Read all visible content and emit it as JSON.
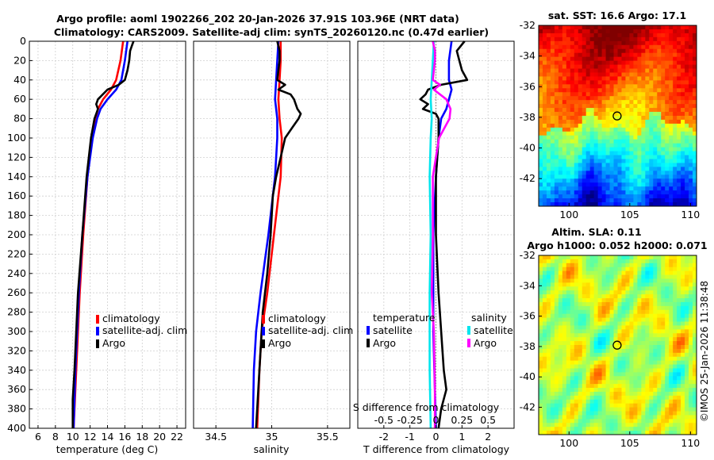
{
  "title": {
    "line1": "Argo profile: aoml 1902266_202 20-Jan-2026 37.91S 103.96E (NRT data)",
    "line2": "Climatology: CARS2009. Satellite-adj clim: synTS_20260120.nc (0.47d earlier)"
  },
  "depth_ticks": [
    0,
    20,
    40,
    60,
    80,
    100,
    120,
    140,
    160,
    180,
    200,
    220,
    240,
    260,
    280,
    300,
    320,
    340,
    360,
    380,
    400
  ],
  "copyright": "©IMOS 25-Jan-2026 11:38:48",
  "chart_data": [
    {
      "id": "temperature",
      "type": "line",
      "xlabel": "temperature (deg C)",
      "ylabel": "",
      "xlim": [
        5,
        23
      ],
      "ylim": [
        400,
        0
      ],
      "xticks": [
        6,
        8,
        10,
        12,
        14,
        16,
        18,
        20,
        22
      ],
      "xtick_labels": [
        "6",
        "8",
        "10",
        "12",
        "14",
        "16",
        "18",
        "20",
        "22"
      ],
      "legend": [
        "climatology",
        "satellite-adj. clim",
        "Argo"
      ],
      "legend_position": "lower-right",
      "series": [
        {
          "name": "climatology",
          "color": "#ff0000",
          "depth": [
            0,
            20,
            40,
            50,
            60,
            70,
            80,
            100,
            140,
            200,
            260,
            300,
            340,
            400
          ],
          "values": [
            15.8,
            15.5,
            15.0,
            14.4,
            13.5,
            12.9,
            12.6,
            12.2,
            11.7,
            11.2,
            10.8,
            10.6,
            10.4,
            10.1
          ]
        },
        {
          "name": "satellite-adj. clim",
          "color": "#0000ff",
          "depth": [
            0,
            20,
            40,
            50,
            60,
            70,
            80,
            100,
            140,
            200,
            260,
            300,
            340,
            400
          ],
          "values": [
            16.3,
            16.0,
            15.6,
            15.0,
            14.0,
            13.2,
            12.8,
            12.3,
            11.7,
            11.1,
            10.7,
            10.5,
            10.3,
            10.1
          ]
        },
        {
          "name": "Argo",
          "color": "#000000",
          "depth": [
            0,
            5,
            10,
            20,
            30,
            40,
            45,
            50,
            60,
            65,
            70,
            80,
            100,
            140,
            200,
            260,
            300,
            340,
            370,
            400
          ],
          "values": [
            17.0,
            16.8,
            16.6,
            16.5,
            16.3,
            16.0,
            15.3,
            14.0,
            12.9,
            12.7,
            12.9,
            12.5,
            12.1,
            11.6,
            11.1,
            10.6,
            10.4,
            10.2,
            10.0,
            10.0
          ]
        }
      ]
    },
    {
      "id": "salinity",
      "type": "line",
      "xlabel": "salinity",
      "ylabel": "",
      "xlim": [
        34.3,
        35.7
      ],
      "ylim": [
        400,
        0
      ],
      "xticks": [
        34.5,
        35,
        35.5
      ],
      "xtick_labels": [
        "34.5",
        "35",
        "35.5"
      ],
      "legend": [
        "climatology",
        "satellite-adj. clim",
        "Argo"
      ],
      "legend_position": "lower-right",
      "series": [
        {
          "name": "climatology",
          "color": "#ff0000",
          "depth": [
            0,
            20,
            40,
            60,
            80,
            100,
            140,
            200,
            260,
            300,
            340,
            400
          ],
          "values": [
            35.08,
            35.08,
            35.07,
            35.06,
            35.07,
            35.09,
            35.08,
            35.02,
            34.96,
            34.91,
            34.89,
            34.87
          ]
        },
        {
          "name": "satellite-adj. clim",
          "color": "#0000ff",
          "depth": [
            0,
            20,
            40,
            60,
            80,
            100,
            140,
            200,
            260,
            300,
            340,
            400
          ],
          "values": [
            35.06,
            35.05,
            35.04,
            35.03,
            35.05,
            35.05,
            35.03,
            34.97,
            34.9,
            34.86,
            34.84,
            34.83
          ]
        },
        {
          "name": "Argo",
          "color": "#000000",
          "depth": [
            0,
            10,
            20,
            40,
            45,
            50,
            55,
            60,
            70,
            75,
            80,
            90,
            100,
            120,
            140,
            160,
            200,
            240,
            280,
            320,
            360,
            400
          ],
          "values": [
            35.05,
            35.07,
            35.07,
            35.05,
            35.12,
            35.06,
            35.17,
            35.2,
            35.23,
            35.26,
            35.24,
            35.18,
            35.12,
            35.08,
            35.04,
            35.01,
            34.99,
            34.96,
            34.92,
            34.9,
            34.88,
            34.86
          ]
        }
      ]
    },
    {
      "id": "difference",
      "type": "line",
      "xlabel": "T difference from climatology",
      "top_label": "S difference from climatology",
      "ylabel": "",
      "xlim": [
        -3,
        3
      ],
      "ylim": [
        400,
        0
      ],
      "xticks": [
        -2,
        -1,
        0,
        1,
        2
      ],
      "xtick_labels": [
        "-2",
        "-1",
        "0",
        "1",
        "2"
      ],
      "sticks": [
        -0.5,
        -0.25,
        0,
        0.25,
        0.5
      ],
      "stick_labels": [
        "-0.5",
        "-0.25",
        "0",
        "0.25",
        "0.5"
      ],
      "slim": [
        -0.75,
        0.75
      ],
      "legend_groups": [
        {
          "heading": "temperature",
          "entries": [
            "satellite",
            "Argo"
          ]
        },
        {
          "heading": "salinity",
          "entries": [
            "satellite",
            "Argo"
          ]
        }
      ],
      "legend_position": "lower-center",
      "series": [
        {
          "name": "temperature satellite",
          "color": "#0000ff",
          "units": "T",
          "depth": [
            0,
            20,
            40,
            50,
            60,
            70,
            80,
            100,
            140,
            200,
            260,
            300,
            400
          ],
          "values": [
            0.6,
            0.5,
            0.5,
            0.6,
            0.5,
            0.4,
            0.2,
            0.1,
            0.0,
            -0.1,
            -0.1,
            -0.1,
            0.0
          ]
        },
        {
          "name": "temperature Argo",
          "color": "#000000",
          "units": "T",
          "depth": [
            0,
            10,
            20,
            30,
            40,
            45,
            50,
            55,
            60,
            65,
            70,
            75,
            80,
            100,
            140,
            200,
            260,
            300,
            340,
            360,
            380,
            400
          ],
          "values": [
            1.1,
            0.8,
            0.9,
            1.0,
            1.2,
            0.2,
            -0.3,
            -0.4,
            -0.6,
            -0.3,
            -0.5,
            0.0,
            0.1,
            0.1,
            0.0,
            0.0,
            0.1,
            0.2,
            0.3,
            0.4,
            0.2,
            0.1
          ]
        },
        {
          "name": "salinity satellite",
          "color": "#00e5ee",
          "units": "S",
          "depth": [
            0,
            20,
            40,
            60,
            80,
            100,
            140,
            200,
            260,
            300,
            340,
            400
          ],
          "values": [
            -0.02,
            -0.03,
            -0.04,
            -0.05,
            -0.04,
            -0.05,
            -0.06,
            -0.05,
            -0.06,
            -0.06,
            -0.06,
            -0.05
          ]
        },
        {
          "name": "salinity Argo",
          "color": "#ff00ff",
          "units": "S",
          "depth": [
            0,
            10,
            20,
            40,
            45,
            50,
            60,
            70,
            80,
            90,
            100,
            140,
            200,
            260,
            300,
            360,
            400
          ],
          "values": [
            -0.03,
            -0.01,
            -0.01,
            -0.03,
            0.04,
            -0.02,
            0.1,
            0.14,
            0.13,
            0.08,
            0.03,
            -0.03,
            -0.03,
            -0.04,
            -0.02,
            -0.01,
            -0.01
          ]
        }
      ]
    },
    {
      "id": "sst_map",
      "type": "heatmap",
      "title": "sat. SST: 16.6 Argo: 17.1",
      "xlim": [
        97.5,
        110.5
      ],
      "ylim": [
        -43.8,
        -32
      ],
      "xticks": [
        100,
        105,
        110
      ],
      "yticks": [
        -32,
        -34,
        -36,
        -38,
        -40,
        -42
      ],
      "marker": {
        "lon": 103.96,
        "lat": -37.91
      }
    },
    {
      "id": "sla_map",
      "type": "heatmap",
      "title": "Altim. SLA: 0.11",
      "subtitle": "Argo h1000: 0.052 h2000: 0.071",
      "xlim": [
        97.5,
        110.5
      ],
      "ylim": [
        -43.8,
        -32
      ],
      "xticks": [
        100,
        105,
        110
      ],
      "yticks": [
        -32,
        -34,
        -36,
        -38,
        -40,
        -42
      ],
      "marker": {
        "lon": 103.96,
        "lat": -37.91
      }
    }
  ]
}
